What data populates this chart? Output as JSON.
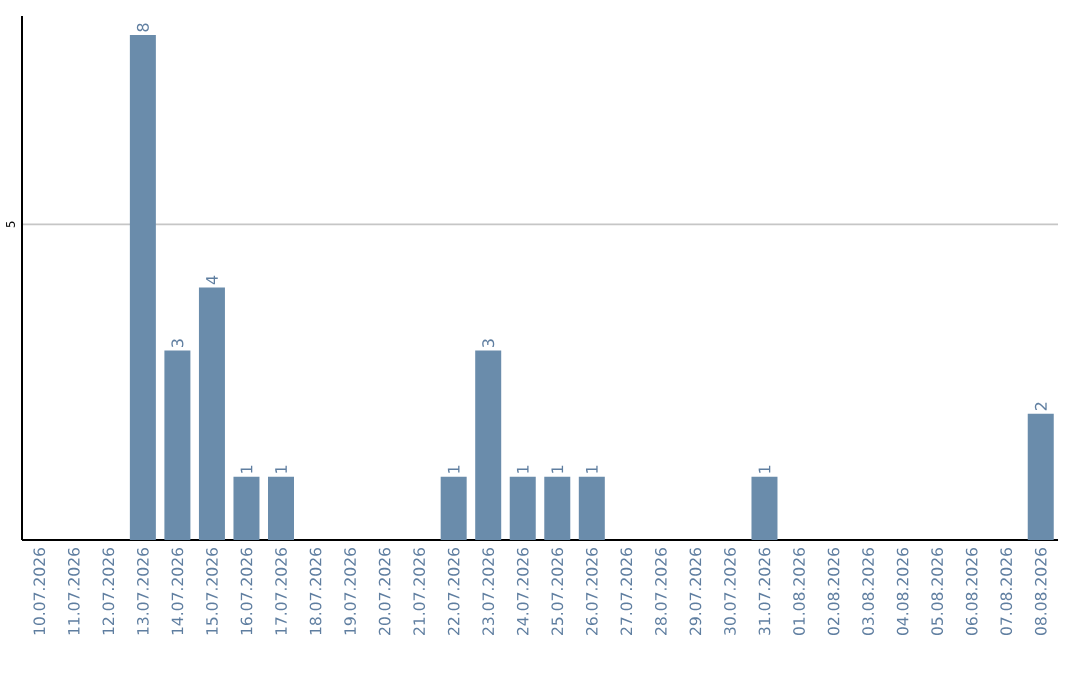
{
  "chart_data": {
    "type": "bar",
    "categories": [
      "10.07.2026",
      "11.07.2026",
      "12.07.2026",
      "13.07.2026",
      "14.07.2026",
      "15.07.2026",
      "16.07.2026",
      "17.07.2026",
      "18.07.2026",
      "19.07.2026",
      "20.07.2026",
      "21.07.2026",
      "22.07.2026",
      "23.07.2026",
      "24.07.2026",
      "25.07.2026",
      "26.07.2026",
      "27.07.2026",
      "28.07.2026",
      "29.07.2026",
      "30.07.2026",
      "31.07.2026",
      "01.08.2026",
      "02.08.2026",
      "03.08.2026",
      "04.08.2026",
      "05.08.2026",
      "06.08.2026",
      "07.08.2026",
      "08.08.2026"
    ],
    "values": [
      0,
      0,
      0,
      8,
      3,
      4,
      1,
      1,
      0,
      0,
      0,
      0,
      1,
      3,
      1,
      1,
      1,
      0,
      0,
      0,
      0,
      1,
      0,
      0,
      0,
      0,
      0,
      0,
      0,
      2
    ],
    "value_labels": [
      null,
      null,
      null,
      "8",
      "3",
      "4",
      "1",
      "1",
      null,
      null,
      null,
      null,
      "1",
      "3",
      "1",
      "1",
      "1",
      null,
      null,
      null,
      null,
      "1",
      null,
      null,
      null,
      null,
      null,
      null,
      null,
      "2"
    ],
    "color": "#6a8cab",
    "ylim": [
      0,
      8.3
    ],
    "yticks": [
      5
    ],
    "grid": "y"
  }
}
